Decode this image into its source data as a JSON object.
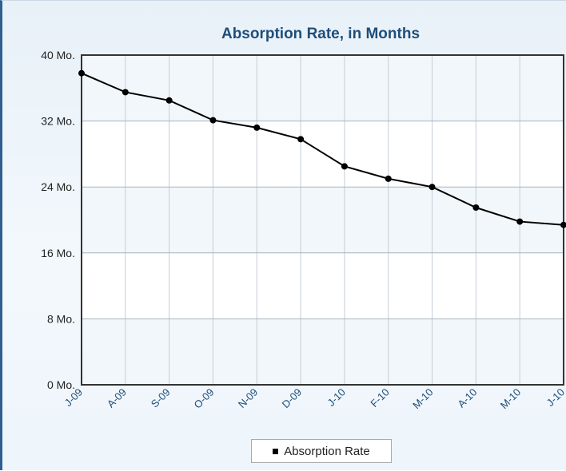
{
  "chart_data": {
    "type": "line",
    "title": "Absorption Rate, in Months",
    "xlabel": "",
    "ylabel": "",
    "categories": [
      "J-09",
      "A-09",
      "S-09",
      "O-09",
      "N-09",
      "D-09",
      "J-10",
      "F-10",
      "M-10",
      "A-10",
      "M-10",
      "J-10"
    ],
    "series": [
      {
        "name": "Absorption Rate",
        "values": [
          37.8,
          35.5,
          34.5,
          32.1,
          31.2,
          29.8,
          26.5,
          25.0,
          24.0,
          21.5,
          19.8,
          19.4
        ]
      }
    ],
    "ylim": [
      0,
      40
    ],
    "yticks": [
      0,
      8,
      16,
      24,
      32,
      40
    ],
    "ytick_labels": [
      "0 Mo.",
      "8 Mo.",
      "16 Mo.",
      "24 Mo.",
      "32 Mo.",
      "40 Mo."
    ],
    "grid": true,
    "legend": "bottom-center",
    "colors": {
      "line": "#000000",
      "title": "#1f4e79",
      "axis_labels": "#1f4e79",
      "frame": "#333333",
      "grid": "#c4cdd6"
    }
  }
}
